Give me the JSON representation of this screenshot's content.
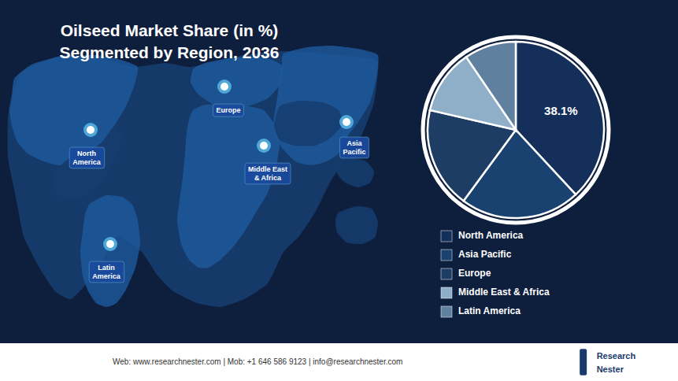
{
  "chart_data": {
    "type": "pie",
    "title": "Oilseed Market Share (in %)",
    "subtitle": "Segmented by Region, 2036",
    "categories": [
      "North America",
      "Asia Pacific",
      "Europe",
      "Middle East & Africa",
      "Latin America"
    ],
    "values": [
      38.1,
      22.0,
      18.5,
      11.9,
      9.5
    ],
    "colors": [
      "#14305a",
      "#1a4270",
      "#1e3d65",
      "#8fafc8",
      "#6080a0"
    ],
    "legend": "bottom-right",
    "annotations": [
      "North\nAmerica",
      "Europe",
      "Asia\nPacific",
      "Middle East\n& Africa",
      "Latin\nAmerica",
      "38.1%",
      "Web: www.researchnester.com | Mob: +1 646 586 9123 | info@researchnester.com",
      "Research",
      "Nester"
    ]
  }
}
